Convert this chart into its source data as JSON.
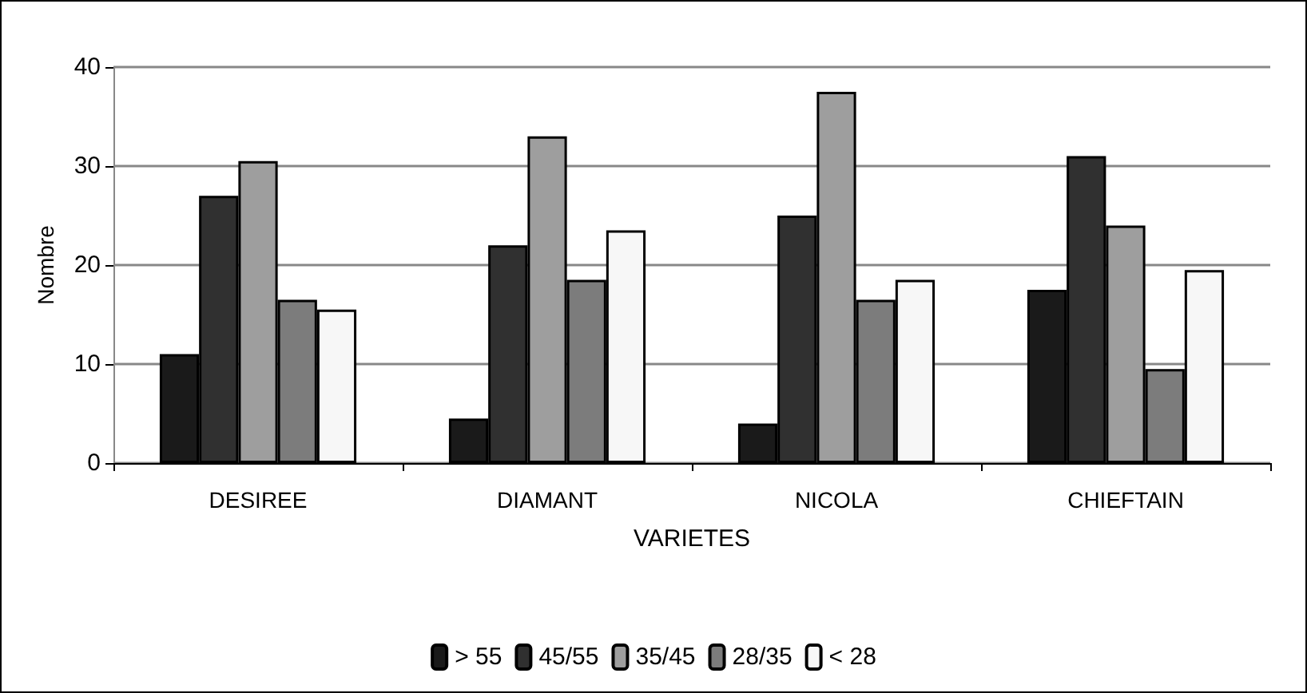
{
  "chart_data": {
    "type": "bar",
    "xlabel": "VARIETES",
    "ylabel": "Nombre",
    "categories": [
      "DESIREE",
      "DIAMANT",
      "NICOLA",
      "CHIEFTAIN"
    ],
    "series": [
      {
        "name": "> 55",
        "color": "#1a1a1a",
        "values": [
          11,
          4.5,
          4,
          17.5
        ]
      },
      {
        "name": "45/55",
        "color": "#303030",
        "values": [
          27,
          22,
          25,
          31
        ]
      },
      {
        "name": "35/45",
        "color": "#9e9e9e",
        "values": [
          30.5,
          33,
          37.5,
          24
        ]
      },
      {
        "name": "28/35",
        "color": "#7c7c7c",
        "values": [
          16.5,
          18.5,
          16.5,
          9.5
        ]
      },
      {
        "name": "< 28",
        "color": "#f7f7f7",
        "values": [
          15.5,
          23.5,
          18.5,
          19.5
        ]
      }
    ],
    "ylim": [
      0,
      40
    ],
    "yticks": [
      0,
      10,
      20,
      30,
      40
    ],
    "grid": "y",
    "legend": "bottom"
  }
}
